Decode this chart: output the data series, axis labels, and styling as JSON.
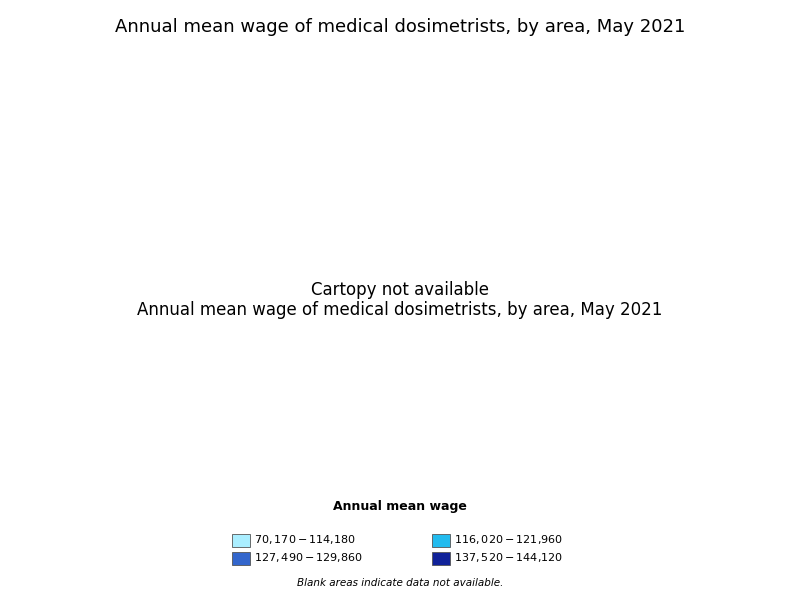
{
  "title": "Annual mean wage of medical dosimetrists, by area, May 2021",
  "legend_title": "Annual mean wage",
  "legend_note": "Blank areas indicate data not available.",
  "legend_items": [
    {
      "label": "$70,170 - $114,180",
      "color": "#aaeeff"
    },
    {
      "label": "$116,020 - $121,960",
      "color": "#22bbee"
    },
    {
      "label": "$127,490 - $129,860",
      "color": "#3366cc"
    },
    {
      "label": "$137,520 - $144,120",
      "color": "#112299"
    }
  ],
  "background_color": "#ffffff",
  "map_edgecolor": "#000000",
  "map_linewidth": 0.35,
  "title_fontsize": 13,
  "title_fontweight": "normal",
  "figsize": [
    8.0,
    6.0
  ],
  "dpi": 100,
  "cbsa_colors": {
    "Denver-Aurora-Lakewood, CO": "#aaeeff",
    "Indianapolis-Carmel-Anderson, IN": "#22bbee",
    "St. Louis, MO-IL": "#22bbee",
    "Dallas-Fort Worth-Arlington, TX": "#3366cc",
    "San Antonio-New Braunfels, TX": "#3366cc",
    "Houston-The Woodlands-Sugar Land, TX": "#3366cc",
    "Atlanta-Sandy Springs-Roswell, GA": "#112299",
    "Miami-Fort Lauderdale-West Palm Beach, FL": "#22bbee",
    "Boston-Cambridge-Nashua, MA-NH": "#112299",
    "New York-Newark-Jersey City, NY-NJ-PA": "#112299",
    "Washington-Arlington-Alexandria, DC-VA-MD-WV": "#112299"
  }
}
